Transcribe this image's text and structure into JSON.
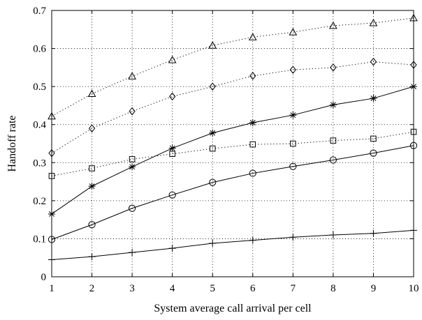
{
  "chart_data": {
    "type": "line",
    "title": "",
    "xlabel": "System average call arrival per cell",
    "ylabel": "Handoff rate",
    "xlim": [
      1,
      10
    ],
    "ylim": [
      0,
      0.7
    ],
    "x_ticks": [
      "1",
      "2",
      "3",
      "4",
      "5",
      "6",
      "7",
      "8",
      "9",
      "10"
    ],
    "y_ticks": [
      "0",
      "0.1",
      "0.2",
      "0.3",
      "0.4",
      "0.5",
      "0.6",
      "0.7"
    ],
    "grid": true,
    "legend": "none",
    "x": [
      1,
      2,
      3,
      4,
      5,
      6,
      7,
      8,
      9,
      10
    ],
    "series": [
      {
        "marker": "triangle",
        "line": "dotted",
        "values": [
          0.422,
          0.481,
          0.527,
          0.57,
          0.608,
          0.63,
          0.643,
          0.66,
          0.667,
          0.68
        ]
      },
      {
        "marker": "diamond",
        "line": "dotted",
        "values": [
          0.325,
          0.39,
          0.435,
          0.474,
          0.5,
          0.528,
          0.544,
          0.55,
          0.565,
          0.557
        ]
      },
      {
        "marker": "asterisk",
        "line": "solid",
        "values": [
          0.165,
          0.238,
          0.289,
          0.338,
          0.378,
          0.405,
          0.425,
          0.452,
          0.469,
          0.5
        ]
      },
      {
        "marker": "square",
        "line": "dotted",
        "values": [
          0.265,
          0.285,
          0.309,
          0.323,
          0.337,
          0.348,
          0.35,
          0.358,
          0.363,
          0.381
        ]
      },
      {
        "marker": "circle",
        "line": "solid",
        "values": [
          0.098,
          0.137,
          0.18,
          0.215,
          0.248,
          0.272,
          0.29,
          0.307,
          0.325,
          0.345
        ]
      },
      {
        "marker": "plus",
        "line": "solid",
        "values": [
          0.045,
          0.053,
          0.064,
          0.075,
          0.088,
          0.096,
          0.104,
          0.11,
          0.114,
          0.122
        ]
      }
    ]
  }
}
